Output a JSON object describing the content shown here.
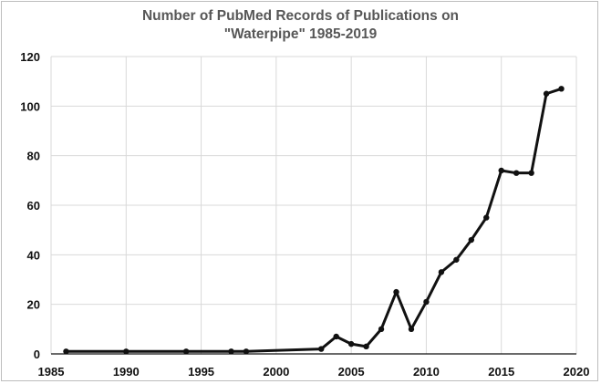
{
  "chart_data": {
    "type": "line",
    "title_line1": "Number of PubMed Records of Publications on",
    "title_line2": "\"Waterpipe\" 1985-2019",
    "xlabel": "",
    "ylabel": "",
    "xlim": [
      1985,
      2020
    ],
    "ylim": [
      0,
      120
    ],
    "x_ticks": [
      1985,
      1990,
      1995,
      2000,
      2005,
      2010,
      2015,
      2020
    ],
    "y_ticks": [
      0,
      20,
      40,
      60,
      80,
      100,
      120
    ],
    "grid": true,
    "legend": "none",
    "line_color": "#111111",
    "series": [
      {
        "x": [
          1986,
          1990,
          1994,
          1997,
          1998,
          2003,
          2004,
          2005,
          2006,
          2007,
          2008,
          2009,
          2010,
          2011,
          2012,
          2013,
          2014,
          2015,
          2016,
          2017,
          2018,
          2019
        ],
        "values": [
          1,
          1,
          1,
          1,
          1,
          2,
          7,
          4,
          3,
          10,
          25,
          10,
          21,
          33,
          38,
          46,
          55,
          74,
          73,
          73,
          105,
          107
        ]
      }
    ]
  }
}
